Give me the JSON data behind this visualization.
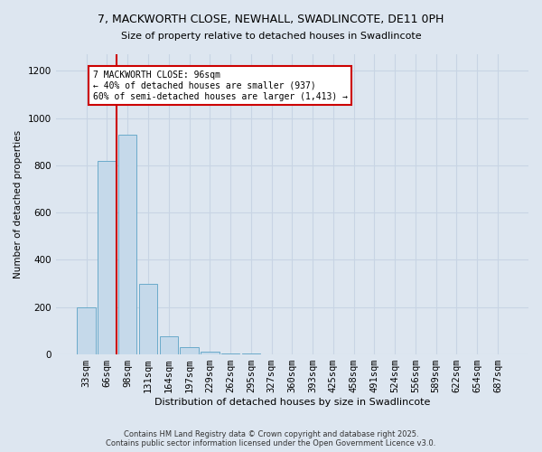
{
  "title_line1": "7, MACKWORTH CLOSE, NEWHALL, SWADLINCOTE, DE11 0PH",
  "title_line2": "Size of property relative to detached houses in Swadlincote",
  "xlabel": "Distribution of detached houses by size in Swadlincote",
  "ylabel": "Number of detached properties",
  "categories": [
    "33sqm",
    "66sqm",
    "98sqm",
    "131sqm",
    "164sqm",
    "197sqm",
    "229sqm",
    "262sqm",
    "295sqm",
    "327sqm",
    "360sqm",
    "393sqm",
    "425sqm",
    "458sqm",
    "491sqm",
    "524sqm",
    "556sqm",
    "589sqm",
    "622sqm",
    "654sqm",
    "687sqm"
  ],
  "bar_values": [
    200,
    820,
    930,
    300,
    75,
    30,
    12,
    6,
    3,
    2,
    1,
    0,
    0,
    0,
    0,
    0,
    0,
    0,
    0,
    0,
    0
  ],
  "bar_color": "#c5d9ea",
  "bar_edge_color": "#6aaaca",
  "vline_color": "#cc0000",
  "annotation_text": "7 MACKWORTH CLOSE: 96sqm\n← 40% of detached houses are smaller (937)\n60% of semi-detached houses are larger (1,413) →",
  "annotation_box_color": "#ffffff",
  "annotation_box_edge_color": "#cc0000",
  "ylim": [
    0,
    1270
  ],
  "yticks": [
    0,
    200,
    400,
    600,
    800,
    1000,
    1200
  ],
  "grid_color": "#c8d4e4",
  "background_color": "#dde6f0",
  "footer_text": "Contains HM Land Registry data © Crown copyright and database right 2025.\nContains public sector information licensed under the Open Government Licence v3.0.",
  "figsize": [
    6.0,
    5.0
  ],
  "dpi": 100
}
